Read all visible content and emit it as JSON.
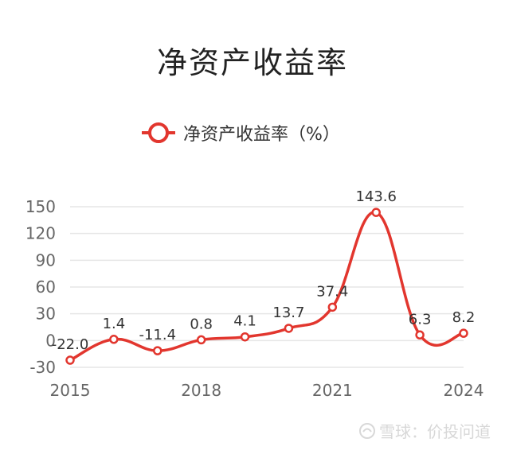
{
  "title": "净资产收益率",
  "watermark": "雪球：价投问道",
  "colors": {
    "line": "#e2362e",
    "grid": "#e6e6e6",
    "axis_text": "#666666",
    "label_text": "#333333"
  },
  "chart_data": {
    "type": "line",
    "title": "净资产收益率",
    "x": [
      "2015",
      "2016",
      "2017",
      "2018",
      "2019",
      "2020",
      "2021",
      "2022",
      "2023",
      "2024"
    ],
    "x_tick_labels": [
      "2015",
      "2018",
      "2021",
      "2024"
    ],
    "y_ticks": [
      "-30",
      "0",
      "30",
      "60",
      "90",
      "120",
      "150"
    ],
    "ylim": [
      -30,
      150
    ],
    "grid": true,
    "legend_position": "top-center",
    "series": [
      {
        "name": "净资产收益率（%）",
        "values": [
          -22.0,
          1.4,
          -11.4,
          0.8,
          4.1,
          13.7,
          37.4,
          143.6,
          6.3,
          8.2
        ],
        "labels": [
          "-22.0",
          "1.4",
          "-11.4",
          "0.8",
          "4.1",
          "13.7",
          "37.4",
          "143.6",
          "6.3",
          "8.2"
        ]
      }
    ]
  }
}
